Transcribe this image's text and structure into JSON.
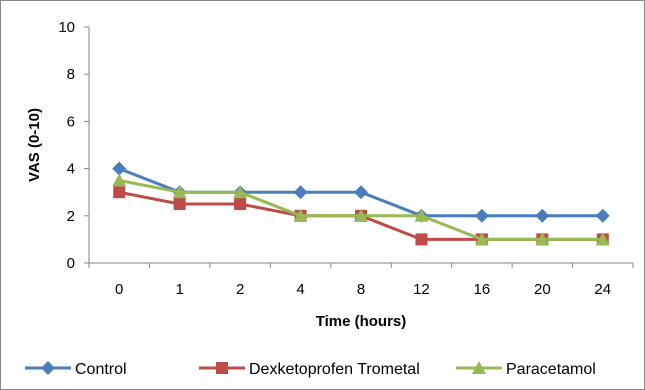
{
  "chart_data": {
    "type": "line",
    "title": "",
    "xlabel": "Time (hours)",
    "ylabel": "VAS (0-10)",
    "categories": [
      "0",
      "1",
      "2",
      "4",
      "8",
      "12",
      "16",
      "20",
      "24"
    ],
    "ylim": [
      0,
      10
    ],
    "yticks": [
      0,
      2,
      4,
      6,
      8,
      10
    ],
    "grid": false,
    "legend_position": "bottom",
    "series": [
      {
        "name": "Control",
        "color": "#4A7EBB",
        "marker": "diamond",
        "values": [
          4,
          3,
          3,
          3,
          3,
          2,
          2,
          2,
          2
        ]
      },
      {
        "name": "Dexketoprofen Trometal",
        "color": "#BE4B48",
        "marker": "square",
        "values": [
          3,
          2.5,
          2.5,
          2,
          2,
          1,
          1,
          1,
          1
        ]
      },
      {
        "name": "Paracetamol",
        "color": "#98B954",
        "marker": "triangle",
        "values": [
          3.5,
          3,
          3,
          2,
          2,
          2,
          1,
          1,
          1
        ]
      }
    ]
  }
}
